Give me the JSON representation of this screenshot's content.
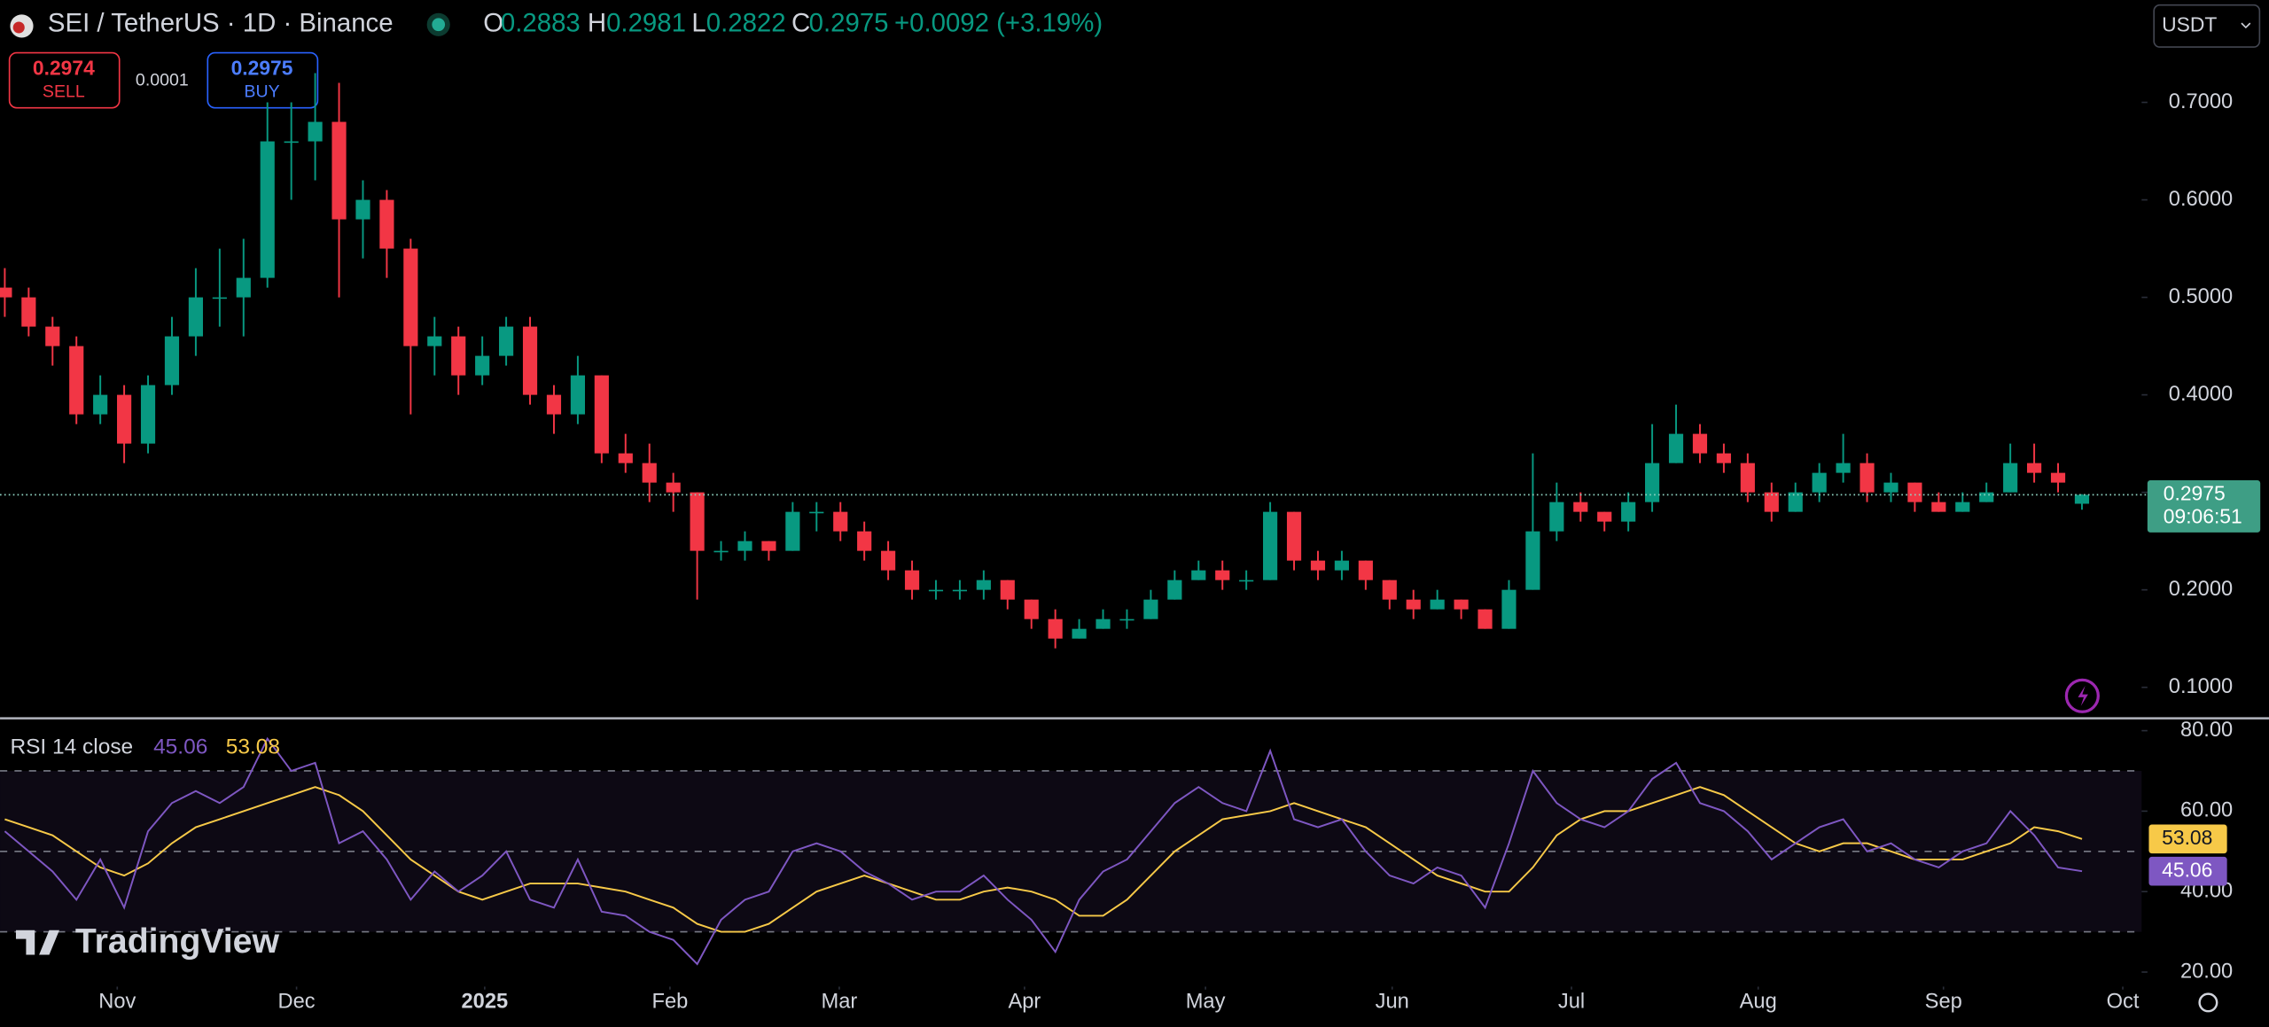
{
  "header": {
    "symbol": "SEI / TetherUS · 1D · Binance",
    "labels": [
      "O",
      "H",
      "L",
      "C"
    ],
    "change": "+0.0092 (+3.19%)",
    "currency": "USDT"
  },
  "trade": {
    "sell_price": "0.2974",
    "sell": "SELL",
    "spread": "0.0001",
    "buy_price": "0.2975",
    "buy": "BUY"
  },
  "price_tag": {
    "countdown": "09:06:51"
  },
  "logo": "TradingView",
  "chart_data": [
    {
      "type": "candlestick",
      "up_color": "#089981",
      "down_color": "#f23645",
      "xlim": [
        -0.2,
        89.5
      ],
      "ylim": [
        0.069,
        0.805
      ],
      "yticks": [
        {
          "value": 0.7,
          "label": "0.7000"
        },
        {
          "value": 0.6,
          "label": "0.6000"
        },
        {
          "value": 0.5,
          "label": "0.5000"
        },
        {
          "value": 0.4,
          "label": "0.4000"
        },
        {
          "value": 0.3,
          "label": "0.3000"
        },
        {
          "value": 0.2,
          "label": "0.2000"
        },
        {
          "value": 0.1,
          "label": "0.1000"
        }
      ],
      "candles": [
        [
          0.51,
          0.53,
          0.48,
          0.5
        ],
        [
          0.5,
          0.51,
          0.46,
          0.47
        ],
        [
          0.47,
          0.48,
          0.43,
          0.45
        ],
        [
          0.45,
          0.46,
          0.37,
          0.38
        ],
        [
          0.38,
          0.42,
          0.37,
          0.4
        ],
        [
          0.4,
          0.41,
          0.33,
          0.35
        ],
        [
          0.35,
          0.42,
          0.34,
          0.41
        ],
        [
          0.41,
          0.48,
          0.4,
          0.46
        ],
        [
          0.46,
          0.53,
          0.44,
          0.5
        ],
        [
          0.5,
          0.55,
          0.47,
          0.5
        ],
        [
          0.5,
          0.56,
          0.46,
          0.52
        ],
        [
          0.52,
          0.7,
          0.51,
          0.66
        ],
        [
          0.66,
          0.7,
          0.6,
          0.66
        ],
        [
          0.66,
          0.73,
          0.62,
          0.68
        ],
        [
          0.68,
          0.72,
          0.5,
          0.58
        ],
        [
          0.58,
          0.62,
          0.54,
          0.6
        ],
        [
          0.6,
          0.61,
          0.52,
          0.55
        ],
        [
          0.55,
          0.56,
          0.38,
          0.45
        ],
        [
          0.45,
          0.48,
          0.42,
          0.46
        ],
        [
          0.46,
          0.47,
          0.4,
          0.42
        ],
        [
          0.42,
          0.46,
          0.41,
          0.44
        ],
        [
          0.44,
          0.48,
          0.43,
          0.47
        ],
        [
          0.47,
          0.48,
          0.39,
          0.4
        ],
        [
          0.4,
          0.41,
          0.36,
          0.38
        ],
        [
          0.38,
          0.44,
          0.37,
          0.42
        ],
        [
          0.42,
          0.42,
          0.33,
          0.34
        ],
        [
          0.34,
          0.36,
          0.32,
          0.33
        ],
        [
          0.33,
          0.35,
          0.29,
          0.31
        ],
        [
          0.31,
          0.32,
          0.28,
          0.3
        ],
        [
          0.3,
          0.3,
          0.19,
          0.24
        ],
        [
          0.24,
          0.25,
          0.23,
          0.24
        ],
        [
          0.24,
          0.26,
          0.23,
          0.25
        ],
        [
          0.25,
          0.25,
          0.23,
          0.24
        ],
        [
          0.24,
          0.29,
          0.24,
          0.28
        ],
        [
          0.28,
          0.29,
          0.26,
          0.28
        ],
        [
          0.28,
          0.29,
          0.25,
          0.26
        ],
        [
          0.26,
          0.27,
          0.23,
          0.24
        ],
        [
          0.24,
          0.25,
          0.21,
          0.22
        ],
        [
          0.22,
          0.23,
          0.19,
          0.2
        ],
        [
          0.2,
          0.21,
          0.19,
          0.2
        ],
        [
          0.2,
          0.21,
          0.19,
          0.2
        ],
        [
          0.2,
          0.22,
          0.19,
          0.21
        ],
        [
          0.21,
          0.21,
          0.18,
          0.19
        ],
        [
          0.19,
          0.19,
          0.16,
          0.17
        ],
        [
          0.17,
          0.18,
          0.14,
          0.15
        ],
        [
          0.15,
          0.17,
          0.15,
          0.16
        ],
        [
          0.16,
          0.18,
          0.16,
          0.17
        ],
        [
          0.17,
          0.18,
          0.16,
          0.17
        ],
        [
          0.17,
          0.2,
          0.17,
          0.19
        ],
        [
          0.19,
          0.22,
          0.19,
          0.21
        ],
        [
          0.21,
          0.23,
          0.21,
          0.22
        ],
        [
          0.22,
          0.23,
          0.2,
          0.21
        ],
        [
          0.21,
          0.22,
          0.2,
          0.21
        ],
        [
          0.21,
          0.29,
          0.21,
          0.28
        ],
        [
          0.28,
          0.28,
          0.22,
          0.23
        ],
        [
          0.23,
          0.24,
          0.21,
          0.22
        ],
        [
          0.22,
          0.24,
          0.21,
          0.23
        ],
        [
          0.23,
          0.23,
          0.2,
          0.21
        ],
        [
          0.21,
          0.21,
          0.18,
          0.19
        ],
        [
          0.19,
          0.2,
          0.17,
          0.18
        ],
        [
          0.18,
          0.2,
          0.18,
          0.19
        ],
        [
          0.19,
          0.19,
          0.17,
          0.18
        ],
        [
          0.18,
          0.18,
          0.16,
          0.16
        ],
        [
          0.16,
          0.21,
          0.16,
          0.2
        ],
        [
          0.2,
          0.34,
          0.2,
          0.26
        ],
        [
          0.26,
          0.31,
          0.25,
          0.29
        ],
        [
          0.29,
          0.3,
          0.27,
          0.28
        ],
        [
          0.28,
          0.28,
          0.26,
          0.27
        ],
        [
          0.27,
          0.3,
          0.26,
          0.29
        ],
        [
          0.29,
          0.37,
          0.28,
          0.33
        ],
        [
          0.33,
          0.39,
          0.33,
          0.36
        ],
        [
          0.36,
          0.37,
          0.33,
          0.34
        ],
        [
          0.34,
          0.35,
          0.32,
          0.33
        ],
        [
          0.33,
          0.34,
          0.29,
          0.3
        ],
        [
          0.3,
          0.31,
          0.27,
          0.28
        ],
        [
          0.28,
          0.31,
          0.28,
          0.3
        ],
        [
          0.3,
          0.33,
          0.29,
          0.32
        ],
        [
          0.32,
          0.36,
          0.31,
          0.33
        ],
        [
          0.33,
          0.34,
          0.29,
          0.3
        ],
        [
          0.3,
          0.32,
          0.29,
          0.31
        ],
        [
          0.31,
          0.31,
          0.28,
          0.29
        ],
        [
          0.29,
          0.3,
          0.28,
          0.28
        ],
        [
          0.28,
          0.3,
          0.28,
          0.29
        ],
        [
          0.29,
          0.31,
          0.29,
          0.3
        ],
        [
          0.3,
          0.35,
          0.3,
          0.33
        ],
        [
          0.33,
          0.35,
          0.31,
          0.32
        ],
        [
          0.32,
          0.33,
          0.3,
          0.31
        ],
        [
          0.2883,
          0.2981,
          0.2822,
          0.2975
        ]
      ]
    },
    {
      "type": "line",
      "title": "RSI 14 close",
      "xlim": [
        -0.2,
        89.5
      ],
      "ylim": [
        17.1,
        82.9
      ],
      "yticks": [
        {
          "value": 80,
          "label": "80.00"
        },
        {
          "value": 60,
          "label": "60.00"
        },
        {
          "value": 40,
          "label": "40.00"
        },
        {
          "value": 20,
          "label": "20.00"
        }
      ],
      "bands": [
        70,
        50,
        30
      ],
      "band_color": "#7e57c2",
      "xticks": [
        {
          "value": 4.71,
          "label": "Nov"
        },
        {
          "value": 12.22,
          "label": "Dec"
        },
        {
          "value": 20.1,
          "label": "2025"
        },
        {
          "value": 27.86,
          "label": "Feb"
        },
        {
          "value": 34.95,
          "label": "Mar"
        },
        {
          "value": 42.71,
          "label": "Apr"
        },
        {
          "value": 50.29,
          "label": "May"
        },
        {
          "value": 58.11,
          "label": "Jun"
        },
        {
          "value": 65.62,
          "label": "Jul"
        },
        {
          "value": 73.44,
          "label": "Aug"
        },
        {
          "value": 81.2,
          "label": "Sep"
        },
        {
          "value": 88.71,
          "label": "Oct"
        }
      ],
      "series": [
        {
          "color": "#7e57c2",
          "values": [
            55,
            50,
            45,
            38,
            48,
            36,
            55,
            62,
            65,
            62,
            66,
            78,
            70,
            72,
            52,
            55,
            48,
            38,
            45,
            40,
            44,
            50,
            38,
            36,
            48,
            35,
            34,
            30,
            28,
            22,
            33,
            38,
            40,
            50,
            52,
            50,
            45,
            42,
            38,
            40,
            40,
            44,
            38,
            33,
            25,
            38,
            45,
            48,
            55,
            62,
            66,
            62,
            60,
            75,
            58,
            56,
            58,
            50,
            44,
            42,
            46,
            44,
            36,
            52,
            70,
            62,
            58,
            56,
            60,
            68,
            72,
            62,
            60,
            55,
            48,
            52,
            56,
            58,
            50,
            52,
            48,
            46,
            50,
            52,
            60,
            54,
            46,
            45.06
          ]
        },
        {
          "color": "#f7c948",
          "values": [
            58,
            56,
            54,
            50,
            46,
            44,
            47,
            52,
            56,
            58,
            60,
            62,
            64,
            66,
            64,
            60,
            54,
            48,
            44,
            40,
            38,
            40,
            42,
            42,
            42,
            41,
            40,
            38,
            36,
            32,
            30,
            30,
            32,
            36,
            40,
            42,
            44,
            42,
            40,
            38,
            38,
            40,
            41,
            40,
            38,
            34,
            34,
            38,
            44,
            50,
            54,
            58,
            59,
            60,
            62,
            60,
            58,
            56,
            52,
            48,
            44,
            42,
            40,
            40,
            46,
            54,
            58,
            60,
            60,
            62,
            64,
            66,
            64,
            60,
            56,
            52,
            50,
            52,
            52,
            50,
            48,
            48,
            48,
            50,
            52,
            56,
            55,
            53.08
          ]
        }
      ]
    }
  ]
}
